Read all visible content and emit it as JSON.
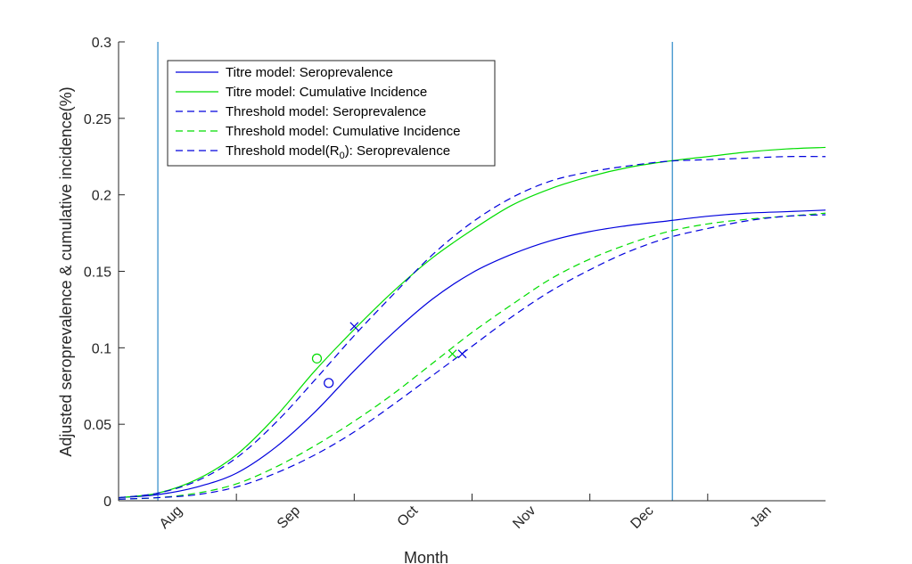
{
  "chart_data": {
    "type": "line",
    "xlabel": "Month",
    "ylabel": "Adjusted seroprevalence & cumulative incidence(%)",
    "xlim": [
      0,
      180
    ],
    "ylim": [
      0,
      0.3
    ],
    "yticks": [
      0,
      0.05,
      0.1,
      0.15,
      0.2,
      0.25,
      0.3
    ],
    "ytick_labels": [
      "0",
      "0.05",
      "0.1",
      "0.15",
      "0.2",
      "0.25",
      "0.3"
    ],
    "month_ticks": [
      {
        "label": "Aug",
        "x": 15
      },
      {
        "label": "Sep",
        "x": 45
      },
      {
        "label": "Oct",
        "x": 75
      },
      {
        "label": "Nov",
        "x": 105
      },
      {
        "label": "Dec",
        "x": 135
      },
      {
        "label": "Jan",
        "x": 165
      }
    ],
    "minor_ticks": [
      30,
      60,
      90,
      120,
      150
    ],
    "vertical_lines": [
      10,
      141
    ],
    "legend_position": "top-left",
    "series": [
      {
        "name": "Titre model: Seroprevalence",
        "color": "#0000dd",
        "dash": "solid",
        "x": [
          0,
          10,
          20,
          30,
          40,
          50,
          60,
          70,
          80,
          90,
          100,
          110,
          120,
          130,
          140,
          150,
          160,
          170,
          180
        ],
        "y": [
          0.002,
          0.004,
          0.009,
          0.018,
          0.035,
          0.058,
          0.085,
          0.11,
          0.132,
          0.149,
          0.161,
          0.17,
          0.176,
          0.18,
          0.183,
          0.186,
          0.188,
          0.189,
          0.19
        ]
      },
      {
        "name": "Titre model: Cumulative Incidence",
        "color": "#00dd00",
        "dash": "solid",
        "x": [
          0,
          10,
          20,
          30,
          40,
          50,
          60,
          70,
          80,
          90,
          100,
          110,
          120,
          130,
          140,
          150,
          160,
          170,
          180
        ],
        "y": [
          0.002,
          0.005,
          0.014,
          0.03,
          0.055,
          0.085,
          0.112,
          0.137,
          0.159,
          0.177,
          0.193,
          0.204,
          0.212,
          0.218,
          0.222,
          0.225,
          0.228,
          0.23,
          0.231
        ]
      },
      {
        "name": "Threshold model: Seroprevalence",
        "color": "#0000dd",
        "dash": "8,5",
        "x": [
          0,
          10,
          20,
          30,
          40,
          50,
          60,
          70,
          80,
          90,
          100,
          110,
          120,
          130,
          140,
          150,
          160,
          170,
          180
        ],
        "y": [
          0.002,
          0.005,
          0.013,
          0.028,
          0.051,
          0.079,
          0.108,
          0.135,
          0.161,
          0.182,
          0.198,
          0.209,
          0.215,
          0.219,
          0.222,
          0.223,
          0.224,
          0.225,
          0.225
        ]
      },
      {
        "name": "Threshold model: Cumulative Incidence",
        "color": "#00dd00",
        "dash": "8,5",
        "x": [
          0,
          10,
          20,
          30,
          40,
          50,
          60,
          70,
          80,
          90,
          100,
          110,
          120,
          130,
          140,
          150,
          160,
          170,
          180
        ],
        "y": [
          0.001,
          0.002,
          0.005,
          0.011,
          0.022,
          0.036,
          0.052,
          0.07,
          0.09,
          0.11,
          0.128,
          0.145,
          0.158,
          0.168,
          0.176,
          0.181,
          0.184,
          0.186,
          0.188
        ]
      },
      {
        "name": "Threshold model(R0): Seroprevalence",
        "color": "#0000dd",
        "dash": "8,5",
        "legend_parts": [
          "Threshold model(R",
          "0",
          "): Seroprevalence"
        ],
        "x": [
          0,
          10,
          20,
          30,
          40,
          50,
          60,
          70,
          80,
          90,
          100,
          110,
          120,
          130,
          140,
          150,
          160,
          170,
          180
        ],
        "y": [
          0.001,
          0.002,
          0.004,
          0.009,
          0.018,
          0.03,
          0.045,
          0.063,
          0.082,
          0.101,
          0.12,
          0.137,
          0.151,
          0.163,
          0.172,
          0.178,
          0.183,
          0.186,
          0.187
        ]
      }
    ],
    "markers": [
      {
        "type": "circle",
        "x": 50.5,
        "y": 0.093,
        "color": "#00dd00"
      },
      {
        "type": "circle",
        "x": 53.5,
        "y": 0.077,
        "color": "#0000dd"
      },
      {
        "type": "cross",
        "x": 60,
        "y": 0.114,
        "color": "#0000dd"
      },
      {
        "type": "cross",
        "x": 85,
        "y": 0.096,
        "color": "#00dd00"
      },
      {
        "type": "cross",
        "x": 87.5,
        "y": 0.096,
        "color": "#0000dd"
      }
    ]
  }
}
